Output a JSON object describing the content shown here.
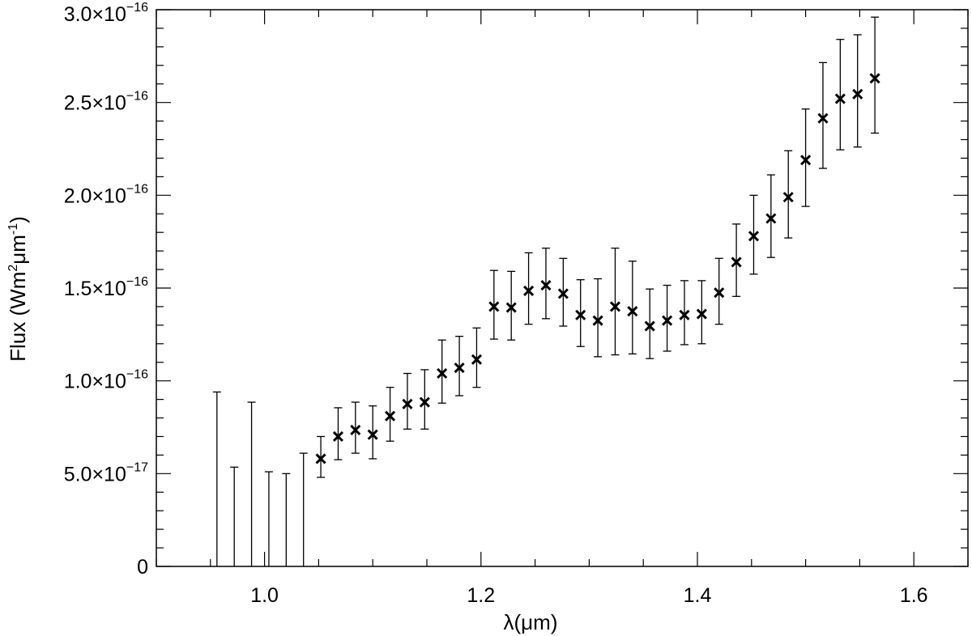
{
  "chart_data": {
    "type": "scatter",
    "title": "",
    "xlabel": "λ(μm)",
    "ylabel": {
      "prefix": "Flux (Wm",
      "sup1": "2",
      "middle": "μm",
      "sup2": "-1",
      "suffix": ")"
    },
    "xlim": [
      0.9,
      1.65
    ],
    "ylim": [
      0,
      3e-16
    ],
    "x_ticks": [
      {
        "value": 1.0,
        "label": "1.0"
      },
      {
        "value": 1.2,
        "label": "1.2"
      },
      {
        "value": 1.4,
        "label": "1.4"
      },
      {
        "value": 1.6,
        "label": "1.6"
      }
    ],
    "y_ticks": [
      {
        "value": 0,
        "mantissa": "0",
        "exponent": ""
      },
      {
        "value": 5e-17,
        "mantissa": "5.0×10",
        "exponent": "−17"
      },
      {
        "value": 1e-16,
        "mantissa": "1.0×10",
        "exponent": "−16"
      },
      {
        "value": 1.5e-16,
        "mantissa": "1.5×10",
        "exponent": "−16"
      },
      {
        "value": 2e-16,
        "mantissa": "2.0×10",
        "exponent": "−16"
      },
      {
        "value": 2.5e-16,
        "mantissa": "2.5×10",
        "exponent": "−16"
      },
      {
        "value": 3e-16,
        "mantissa": "3.0×10",
        "exponent": "−16"
      }
    ],
    "grid": false,
    "marker": "x",
    "errorbars_only": [
      {
        "x": 0.956,
        "upper": 9.4e-17
      },
      {
        "x": 0.972,
        "upper": 5.35e-17
      },
      {
        "x": 0.988,
        "upper": 8.85e-17
      },
      {
        "x": 1.004,
        "upper": 5.1e-17
      },
      {
        "x": 1.02,
        "upper": 5e-17
      },
      {
        "x": 1.036,
        "upper": 6.1e-17
      }
    ],
    "points": [
      {
        "x": 1.052,
        "y": 5.8e-17,
        "yerr_low": 4.8e-17,
        "yerr_high": 7e-17
      },
      {
        "x": 1.068,
        "y": 7e-17,
        "yerr_low": 5.75e-17,
        "yerr_high": 8.55e-17
      },
      {
        "x": 1.084,
        "y": 7.35e-17,
        "yerr_low": 6.1e-17,
        "yerr_high": 8.85e-17
      },
      {
        "x": 1.1,
        "y": 7.1e-17,
        "yerr_low": 5.8e-17,
        "yerr_high": 8.65e-17
      },
      {
        "x": 1.116,
        "y": 8.1e-17,
        "yerr_low": 6.75e-17,
        "yerr_high": 9.65e-17
      },
      {
        "x": 1.132,
        "y": 8.75e-17,
        "yerr_low": 7.4e-17,
        "yerr_high": 1.04e-16
      },
      {
        "x": 1.148,
        "y": 8.85e-17,
        "yerr_low": 7.4e-17,
        "yerr_high": 1.06e-16
      },
      {
        "x": 1.164,
        "y": 1.04e-16,
        "yerr_low": 8.8e-17,
        "yerr_high": 1.22e-16
      },
      {
        "x": 1.18,
        "y": 1.07e-16,
        "yerr_low": 9.2e-17,
        "yerr_high": 1.24e-16
      },
      {
        "x": 1.196,
        "y": 1.115e-16,
        "yerr_low": 9.65e-17,
        "yerr_high": 1.285e-16
      },
      {
        "x": 1.212,
        "y": 1.4e-16,
        "yerr_low": 1.225e-16,
        "yerr_high": 1.595e-16
      },
      {
        "x": 1.228,
        "y": 1.395e-16,
        "yerr_low": 1.22e-16,
        "yerr_high": 1.59e-16
      },
      {
        "x": 1.244,
        "y": 1.485e-16,
        "yerr_low": 1.305e-16,
        "yerr_high": 1.69e-16
      },
      {
        "x": 1.26,
        "y": 1.515e-16,
        "yerr_low": 1.335e-16,
        "yerr_high": 1.715e-16
      },
      {
        "x": 1.276,
        "y": 1.47e-16,
        "yerr_low": 1.295e-16,
        "yerr_high": 1.66e-16
      },
      {
        "x": 1.292,
        "y": 1.355e-16,
        "yerr_low": 1.185e-16,
        "yerr_high": 1.545e-16
      },
      {
        "x": 1.308,
        "y": 1.325e-16,
        "yerr_low": 1.13e-16,
        "yerr_high": 1.55e-16
      },
      {
        "x": 1.324,
        "y": 1.4e-16,
        "yerr_low": 1.14e-16,
        "yerr_high": 1.715e-16
      },
      {
        "x": 1.34,
        "y": 1.375e-16,
        "yerr_low": 1.145e-16,
        "yerr_high": 1.645e-16
      },
      {
        "x": 1.356,
        "y": 1.295e-16,
        "yerr_low": 1.12e-16,
        "yerr_high": 1.495e-16
      },
      {
        "x": 1.372,
        "y": 1.325e-16,
        "yerr_low": 1.16e-16,
        "yerr_high": 1.515e-16
      },
      {
        "x": 1.388,
        "y": 1.355e-16,
        "yerr_low": 1.195e-16,
        "yerr_high": 1.54e-16
      },
      {
        "x": 1.404,
        "y": 1.36e-16,
        "yerr_low": 1.2e-16,
        "yerr_high": 1.54e-16
      },
      {
        "x": 1.42,
        "y": 1.475e-16,
        "yerr_low": 1.305e-16,
        "yerr_high": 1.66e-16
      },
      {
        "x": 1.436,
        "y": 1.64e-16,
        "yerr_low": 1.455e-16,
        "yerr_high": 1.845e-16
      },
      {
        "x": 1.452,
        "y": 1.78e-16,
        "yerr_low": 1.575e-16,
        "yerr_high": 2e-16
      },
      {
        "x": 1.468,
        "y": 1.875e-16,
        "yerr_low": 1.665e-16,
        "yerr_high": 2.11e-16
      },
      {
        "x": 1.484,
        "y": 1.99e-16,
        "yerr_low": 1.77e-16,
        "yerr_high": 2.24e-16
      },
      {
        "x": 1.5,
        "y": 2.19e-16,
        "yerr_low": 1.94e-16,
        "yerr_high": 2.465e-16
      },
      {
        "x": 1.516,
        "y": 2.415e-16,
        "yerr_low": 2.145e-16,
        "yerr_high": 2.715e-16
      },
      {
        "x": 1.532,
        "y": 2.52e-16,
        "yerr_low": 2.245e-16,
        "yerr_high": 2.84e-16
      },
      {
        "x": 1.548,
        "y": 2.545e-16,
        "yerr_low": 2.26e-16,
        "yerr_high": 2.865e-16
      },
      {
        "x": 1.564,
        "y": 2.63e-16,
        "yerr_low": 2.335e-16,
        "yerr_high": 2.96e-16
      }
    ]
  }
}
